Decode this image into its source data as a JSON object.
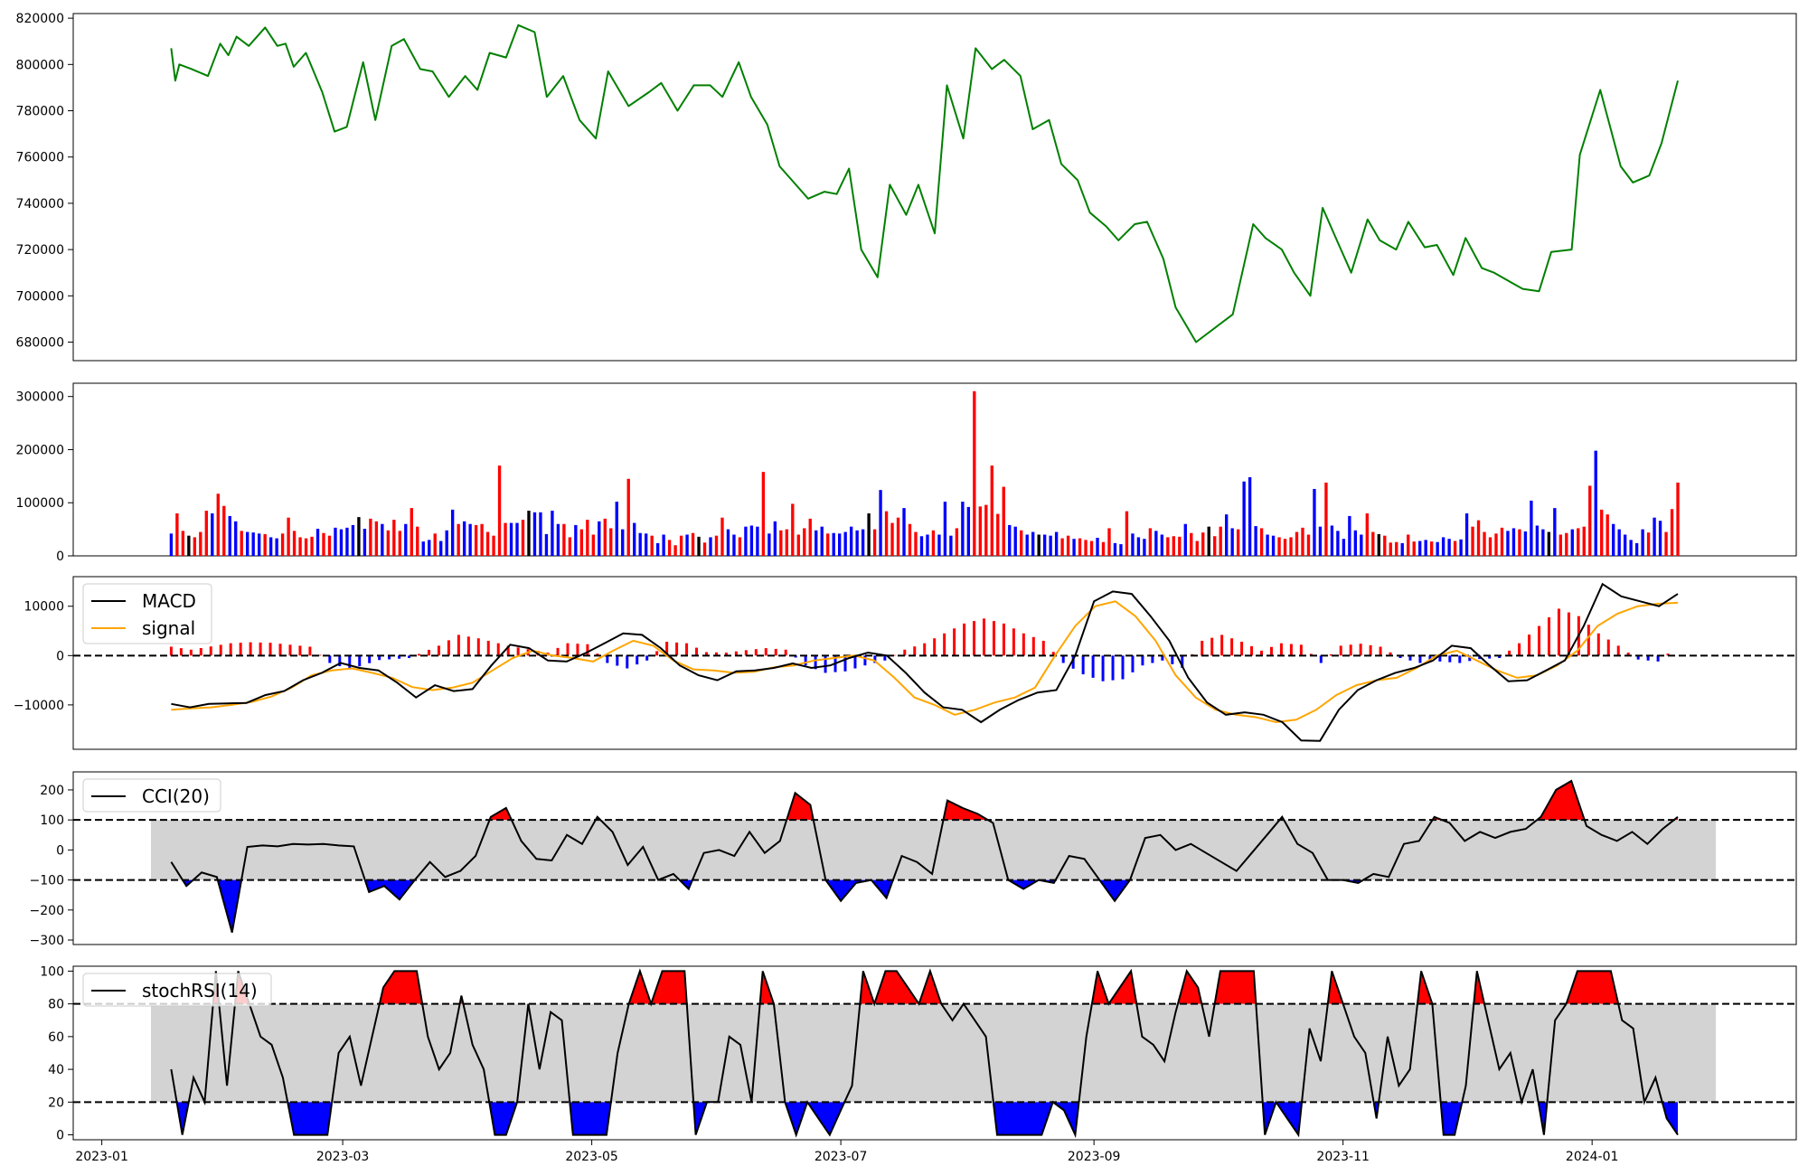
{
  "chart_data": [
    {
      "type": "line",
      "panel": "price",
      "color": "#008000",
      "ylim": [
        672000,
        822000
      ],
      "yticks": [
        680000,
        700000,
        720000,
        740000,
        760000,
        780000,
        800000,
        820000
      ],
      "ytick_labels": [
        "680000",
        "700000",
        "720000",
        "740000",
        "760000",
        "780000",
        "800000",
        "820000"
      ],
      "x": [
        "2023-01-18",
        "2023-01-19",
        "2023-01-20",
        "2023-01-23",
        "2023-01-27",
        "2023-01-30",
        "2023-02-01",
        "2023-02-03",
        "2023-02-06",
        "2023-02-10",
        "2023-02-13",
        "2023-02-15",
        "2023-02-17",
        "2023-02-20",
        "2023-02-24",
        "2023-02-27",
        "2023-03-02",
        "2023-03-06",
        "2023-03-09",
        "2023-03-13",
        "2023-03-16",
        "2023-03-20",
        "2023-03-23",
        "2023-03-27",
        "2023-03-31",
        "2023-04-03",
        "2023-04-06",
        "2023-04-10",
        "2023-04-13",
        "2023-04-17",
        "2023-04-20",
        "2023-04-24",
        "2023-04-28",
        "2023-05-02",
        "2023-05-05",
        "2023-05-10",
        "2023-05-15",
        "2023-05-18",
        "2023-05-22",
        "2023-05-26",
        "2023-05-30",
        "2023-06-02",
        "2023-06-06",
        "2023-06-09",
        "2023-06-13",
        "2023-06-16",
        "2023-06-20",
        "2023-06-23",
        "2023-06-27",
        "2023-06-30",
        "2023-07-03",
        "2023-07-06",
        "2023-07-10",
        "2023-07-13",
        "2023-07-17",
        "2023-07-20",
        "2023-07-24",
        "2023-07-27",
        "2023-07-31",
        "2023-08-03",
        "2023-08-07",
        "2023-08-10",
        "2023-08-14",
        "2023-08-17",
        "2023-08-21",
        "2023-08-24",
        "2023-08-28",
        "2023-08-31",
        "2023-09-04",
        "2023-09-07",
        "2023-09-11",
        "2023-09-14",
        "2023-09-18",
        "2023-09-21",
        "2023-09-26",
        "2023-10-05",
        "2023-10-10",
        "2023-10-13",
        "2023-10-17",
        "2023-10-20",
        "2023-10-24",
        "2023-10-27",
        "2023-10-31",
        "2023-11-03",
        "2023-11-07",
        "2023-11-10",
        "2023-11-14",
        "2023-11-17",
        "2023-11-21",
        "2023-11-24",
        "2023-11-28",
        "2023-12-01",
        "2023-12-05",
        "2023-12-08",
        "2023-12-12",
        "2023-12-15",
        "2023-12-19",
        "2023-12-22",
        "2023-12-27",
        "2023-12-29",
        "2024-01-03",
        "2024-01-08",
        "2024-01-11",
        "2024-01-15",
        "2024-01-18",
        "2024-01-22"
      ],
      "values": [
        807000,
        793000,
        800000,
        798000,
        795000,
        809000,
        804000,
        812000,
        808000,
        816000,
        808000,
        809000,
        799000,
        805000,
        788000,
        771000,
        773000,
        801000,
        776000,
        808000,
        811000,
        798000,
        797000,
        786000,
        795000,
        789000,
        805000,
        803000,
        817000,
        814000,
        786000,
        795000,
        776000,
        768000,
        797000,
        782000,
        788000,
        792000,
        780000,
        791000,
        791000,
        786000,
        801000,
        786000,
        774000,
        756000,
        748000,
        742000,
        745000,
        744000,
        755000,
        720000,
        708000,
        748000,
        735000,
        748000,
        727000,
        791000,
        768000,
        807000,
        798000,
        802000,
        795000,
        772000,
        776000,
        757000,
        750000,
        736000,
        730000,
        724000,
        731000,
        732000,
        716000,
        695000,
        680000,
        692000,
        731000,
        725000,
        720000,
        710000,
        700000,
        738000,
        722000,
        710000,
        733000,
        724000,
        720000,
        732000,
        721000,
        722000,
        709000,
        725000,
        712000,
        710000,
        706000,
        703000,
        702000,
        719000,
        720000,
        761000,
        789000,
        756000,
        749000,
        752000,
        766000,
        793000
      ]
    },
    {
      "type": "bar",
      "panel": "volume",
      "up_color": "#ff0000",
      "down_color": "#0000ff",
      "flat_color": "#000000",
      "ylim": [
        0,
        325000
      ],
      "yticks": [
        0,
        100000,
        200000,
        300000
      ],
      "ytick_labels": [
        "0",
        "100000",
        "200000",
        "300000"
      ],
      "values": [
        42000,
        80000,
        47000,
        38000,
        35000,
        45000,
        85000,
        80000,
        117000,
        94000,
        75000,
        65000,
        47000,
        45000,
        44000,
        42000,
        41000,
        35000,
        33000,
        42000,
        72000,
        47000,
        35000,
        33000,
        36000,
        51000,
        43000,
        38000,
        53000,
        50000,
        53000,
        58000,
        73000,
        51000,
        70000,
        65000,
        60000,
        48000,
        68000,
        47000,
        60000,
        90000,
        55000,
        27000,
        30000,
        42000,
        28000,
        48000,
        87000,
        60000,
        65000,
        60000,
        58000,
        60000,
        45000,
        38000,
        170000,
        62000,
        62000,
        62000,
        68000,
        85000,
        82000,
        82000,
        41000,
        85000,
        60000,
        60000,
        35000,
        58000,
        50000,
        68000,
        40000,
        65000,
        70000,
        52000,
        102000,
        50000,
        145000,
        62000,
        43000,
        42000,
        38000,
        24000,
        40000,
        30000,
        20000,
        38000,
        40000,
        43000,
        36000,
        25000,
        35000,
        38000,
        72000,
        50000,
        40000,
        35000,
        55000,
        57000,
        55000,
        158000,
        42000,
        65000,
        48000,
        50000,
        98000,
        40000,
        52000,
        70000,
        48000,
        55000,
        42000,
        43000,
        42000,
        45000,
        55000,
        48000,
        50000,
        80000,
        50000,
        124000,
        84000,
        62000,
        72000,
        90000,
        60000,
        45000,
        37000,
        40000,
        48000,
        40000,
        102000,
        38000,
        52000,
        102000,
        92000,
        310000,
        93000,
        96000,
        170000,
        79000,
        130000,
        58000,
        55000,
        48000,
        40000,
        45000,
        40000,
        40000,
        38000,
        45000,
        33000,
        38000,
        32000,
        33000,
        30000,
        28000,
        34000,
        26000,
        52000,
        24000,
        22000,
        84000,
        42000,
        35000,
        32000,
        52000,
        47000,
        40000,
        35000,
        37000,
        36000,
        60000,
        43000,
        28000,
        44000,
        55000,
        37000,
        55000,
        78000,
        52000,
        50000,
        140000,
        148000,
        56000,
        52000,
        40000,
        38000,
        35000,
        32000,
        35000,
        45000,
        53000,
        40000,
        126000,
        55000,
        138000,
        57000,
        47000,
        32000,
        75000,
        48000,
        40000,
        80000,
        45000,
        41000,
        38000,
        25000,
        26000,
        24000,
        40000,
        27000,
        28000,
        30000,
        27000,
        26000,
        35000,
        32000,
        28000,
        31000,
        80000,
        55000,
        67000,
        45000,
        35000,
        42000,
        53000,
        47000,
        52000,
        50000,
        46000,
        104000,
        57000,
        50000,
        45000,
        90000,
        40000,
        43000,
        50000,
        52000,
        55000,
        132000,
        198000,
        87000,
        78000,
        60000,
        50000,
        40000,
        30000,
        24000,
        50000,
        44000,
        72000,
        66000,
        45000,
        88000,
        138000
      ]
    },
    {
      "type": "line",
      "panel": "macd",
      "ylim": [
        -19000,
        16000
      ],
      "yticks": [
        -10000,
        0,
        10000
      ],
      "ytick_labels": [
        "−10000",
        "0",
        "10000"
      ],
      "legend": [
        "MACD",
        "signal"
      ],
      "series_colors": {
        "macd": "#000000",
        "signal": "#ffa500",
        "hist_pos": "#ff0000",
        "hist_neg": "#0000ff"
      },
      "macd": [
        -9800,
        -10500,
        -9800,
        -9700,
        -9600,
        -8000,
        -7200,
        -5000,
        -3500,
        -1500,
        -2500,
        -3000,
        -5500,
        -8500,
        -6000,
        -7200,
        -6800,
        -2000,
        2200,
        1500,
        -1000,
        -1200,
        500,
        2500,
        4500,
        4200,
        1500,
        -2000,
        -4000,
        -5000,
        -3200,
        -3000,
        -2500,
        -1600,
        -2500,
        -2000,
        -500,
        600,
        0,
        -3500,
        -7500,
        -10500,
        -11000,
        -13500,
        -11000,
        -9000,
        -7500,
        -7000,
        0,
        11000,
        13000,
        12500,
        8000,
        3000,
        -4500,
        -9500,
        -12000,
        -11500,
        -12000,
        -13500,
        -17200,
        -17300,
        -11000,
        -7000,
        -5000,
        -3500,
        -2500,
        -1000,
        2000,
        1500,
        -2000,
        -5200,
        -5000,
        -3000,
        -1000,
        6000,
        14500,
        12000,
        11000,
        10000,
        12500
      ],
      "signal": [
        -11000,
        -10700,
        -10500,
        -10000,
        -9400,
        -8300,
        -6500,
        -4000,
        -3000,
        -2600,
        -3500,
        -4500,
        -6400,
        -7000,
        -6500,
        -5500,
        -3000,
        -500,
        1000,
        0,
        -500,
        -1200,
        1000,
        3000,
        2000,
        -1000,
        -2800,
        -3000,
        -3500,
        -3300,
        -2400,
        -2000,
        -1000,
        -500,
        0,
        -1000,
        -4500,
        -8500,
        -10000,
        -12000,
        -11000,
        -9500,
        -8500,
        -6500,
        0,
        6000,
        10000,
        11000,
        8000,
        3000,
        -4000,
        -8500,
        -11000,
        -12000,
        -12500,
        -13500,
        -13000,
        -11000,
        -8000,
        -6000,
        -5000,
        -4500,
        -2500,
        0,
        1000,
        -1000,
        -3000,
        -4500,
        -4000,
        -2000,
        1000,
        6000,
        8500,
        10000,
        10500,
        10700
      ],
      "hist_samples": [
        [
          0,
          1800
        ],
        [
          2,
          1200
        ],
        [
          6,
          2500
        ],
        [
          8,
          2700
        ],
        [
          10,
          2600
        ],
        [
          12,
          2200
        ],
        [
          14,
          1800
        ],
        [
          16,
          -1500
        ],
        [
          18,
          -2800
        ],
        [
          21,
          -900
        ],
        [
          24,
          -500
        ],
        [
          27,
          2000
        ],
        [
          29,
          4200
        ],
        [
          31,
          3500
        ],
        [
          34,
          2000
        ],
        [
          38,
          600
        ],
        [
          40,
          2500
        ],
        [
          42,
          2300
        ],
        [
          44,
          -1500
        ],
        [
          46,
          -2600
        ],
        [
          48,
          -1000
        ],
        [
          50,
          2800
        ],
        [
          52,
          2500
        ],
        [
          54,
          700
        ],
        [
          56,
          600
        ],
        [
          58,
          1100
        ],
        [
          60,
          1500
        ],
        [
          62,
          1200
        ],
        [
          64,
          -2000
        ],
        [
          66,
          -3500
        ],
        [
          68,
          -3200
        ],
        [
          70,
          -2000
        ],
        [
          72,
          -1000
        ],
        [
          74,
          1200
        ],
        [
          76,
          2500
        ],
        [
          78,
          4500
        ],
        [
          80,
          6500
        ],
        [
          82,
          7500
        ],
        [
          84,
          6500
        ],
        [
          86,
          4500
        ],
        [
          88,
          3000
        ],
        [
          90,
          -1500
        ],
        [
          92,
          -3800
        ],
        [
          94,
          -5200
        ],
        [
          96,
          -4800
        ],
        [
          98,
          -2000
        ],
        [
          100,
          -1000
        ],
        [
          102,
          -2500
        ],
        [
          104,
          3000
        ],
        [
          106,
          4200
        ],
        [
          108,
          2800
        ],
        [
          110,
          1000
        ],
        [
          112,
          2500
        ],
        [
          114,
          2200
        ],
        [
          116,
          -1500
        ],
        [
          118,
          2000
        ],
        [
          120,
          2400
        ],
        [
          122,
          1800
        ],
        [
          124,
          -500
        ],
        [
          126,
          -1500
        ],
        [
          128,
          -1200
        ],
        [
          130,
          -1500
        ],
        [
          132,
          -700
        ],
        [
          134,
          -500
        ],
        [
          136,
          2500
        ],
        [
          138,
          6000
        ],
        [
          140,
          9500
        ],
        [
          142,
          8000
        ],
        [
          144,
          4500
        ],
        [
          146,
          2000
        ],
        [
          148,
          -800
        ],
        [
          150,
          -1200
        ],
        [
          152,
          2000
        ]
      ]
    },
    {
      "type": "line",
      "panel": "cci",
      "ylim": [
        -315,
        260
      ],
      "yticks": [
        -300,
        -200,
        -100,
        0,
        100,
        200
      ],
      "ytick_labels": [
        "−300",
        "−200",
        "−100",
        "0",
        "100",
        "200"
      ],
      "band": [
        -100,
        100
      ],
      "legend": [
        "CCI(20)"
      ],
      "values": [
        -40,
        -120,
        -75,
        -90,
        -275,
        10,
        15,
        12,
        20,
        18,
        20,
        15,
        12,
        -140,
        -120,
        -165,
        -100,
        -40,
        -90,
        -70,
        -20,
        110,
        140,
        30,
        -30,
        -35,
        50,
        20,
        110,
        60,
        -50,
        10,
        -100,
        -80,
        -130,
        -10,
        0,
        -20,
        60,
        -10,
        30,
        190,
        150,
        -100,
        -170,
        -110,
        -100,
        -160,
        -20,
        -40,
        -80,
        165,
        140,
        120,
        90,
        -100,
        -130,
        -100,
        -110,
        -20,
        -30,
        -100,
        -170,
        -100,
        40,
        50,
        0,
        20,
        -10,
        -40,
        -70,
        -10,
        50,
        110,
        20,
        -10,
        -100,
        -100,
        -110,
        -80,
        -90,
        20,
        30,
        110,
        90,
        30,
        60,
        40,
        60,
        70,
        110,
        200,
        230,
        80,
        50,
        30,
        60,
        20,
        70,
        110
      ]
    },
    {
      "type": "line",
      "panel": "stochrsi",
      "ylim": [
        -3,
        103
      ],
      "yticks": [
        0,
        20,
        40,
        60,
        80,
        100
      ],
      "ytick_labels": [
        "0",
        "20",
        "40",
        "60",
        "80",
        "100"
      ],
      "band": [
        20,
        80
      ],
      "legend": [
        "stochRSI(14)"
      ],
      "values": [
        40,
        0,
        35,
        20,
        100,
        30,
        100,
        80,
        60,
        55,
        35,
        0,
        0,
        0,
        0,
        50,
        60,
        30,
        60,
        90,
        100,
        100,
        100,
        60,
        40,
        50,
        85,
        55,
        40,
        0,
        0,
        20,
        80,
        40,
        75,
        70,
        0,
        0,
        0,
        0,
        50,
        80,
        100,
        80,
        100,
        100,
        100,
        0,
        20,
        20,
        60,
        55,
        20,
        100,
        80,
        20,
        0,
        20,
        10,
        0,
        15,
        30,
        100,
        80,
        100,
        100,
        90,
        80,
        100,
        80,
        70,
        80,
        70,
        60,
        0,
        0,
        0,
        0,
        0,
        20,
        15,
        0,
        60,
        100,
        80,
        90,
        100,
        60,
        55,
        45,
        75,
        100,
        90,
        60,
        100,
        100,
        100,
        100,
        0,
        20,
        10,
        0,
        65,
        45,
        100,
        80,
        60,
        50,
        10,
        60,
        30,
        40,
        100,
        80,
        0,
        0,
        30,
        100,
        70,
        40,
        50,
        20,
        40,
        0,
        70,
        80,
        100,
        100,
        100,
        100,
        70,
        65,
        20,
        35,
        10,
        0
      ]
    }
  ],
  "x_axis": {
    "tick_labels": [
      "2023-01",
      "2023-03",
      "2023-05",
      "2023-07",
      "2023-09",
      "2023-11",
      "2024-01"
    ]
  }
}
